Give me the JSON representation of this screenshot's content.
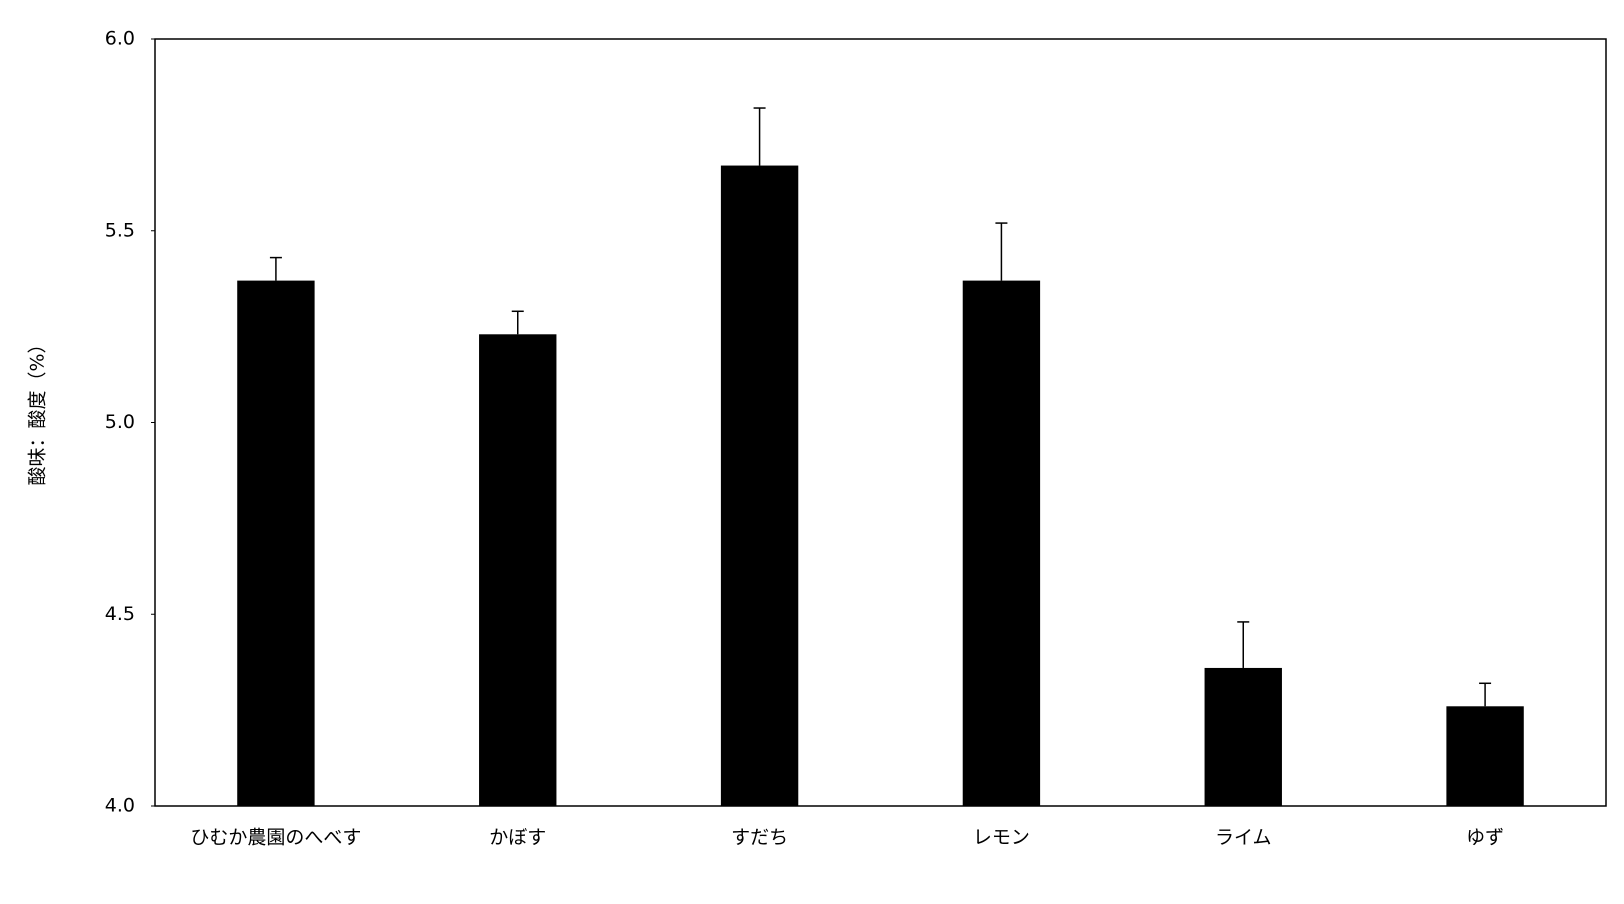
{
  "chart_data": {
    "type": "bar",
    "y_label": "酸味：酸度（%）",
    "categories": [
      "ひむか農園のへべす",
      "かぼす",
      "すだち",
      "レモン",
      "ライム",
      "ゆず"
    ],
    "values": [
      5.37,
      5.23,
      5.67,
      5.37,
      4.36,
      4.26
    ],
    "errors": [
      0.06,
      0.06,
      0.15,
      0.15,
      0.12,
      0.06
    ],
    "color": "#000000",
    "ylim": [
      4,
      6
    ],
    "yticks": [
      {
        "value": 4,
        "label": "4.0"
      },
      {
        "value": 4.5,
        "label": "4.5"
      },
      {
        "value": 5,
        "label": "5.0"
      },
      {
        "value": 5.5,
        "label": "5.5"
      },
      {
        "value": 6,
        "label": "6.0"
      }
    ],
    "grid": false
  }
}
